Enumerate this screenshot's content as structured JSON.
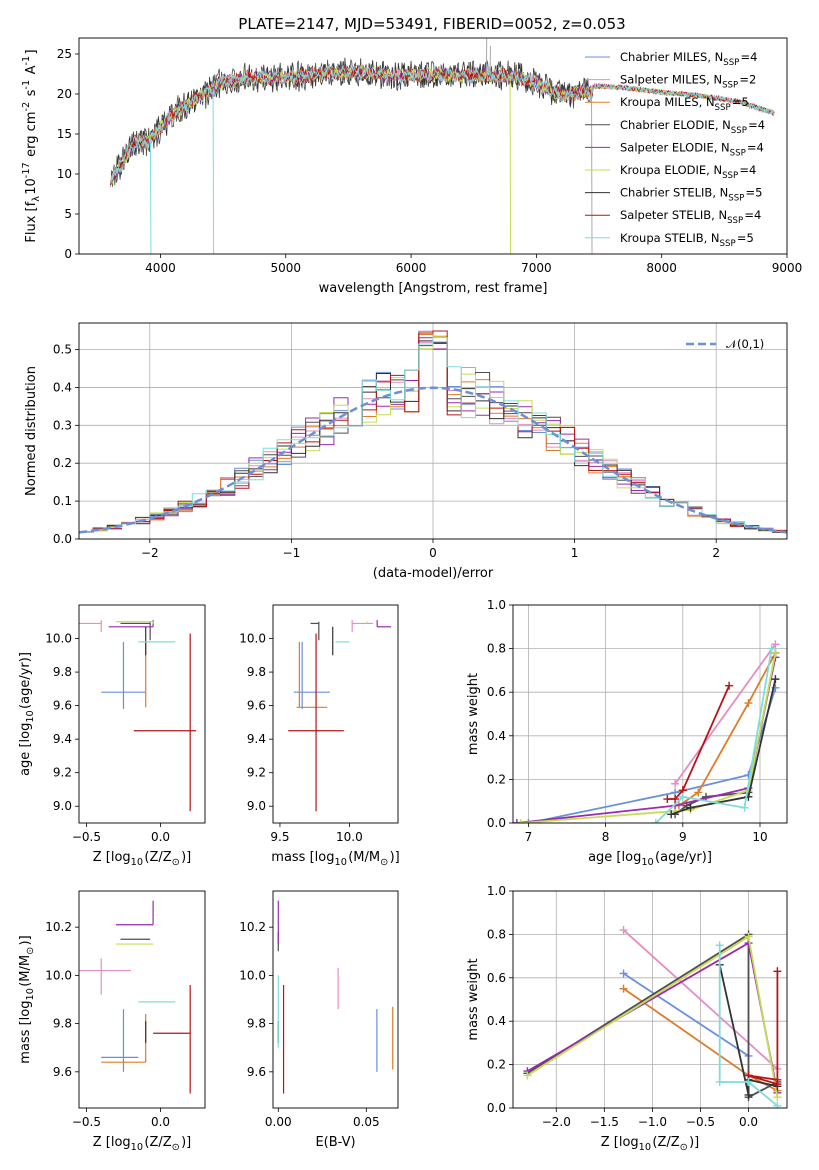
{
  "figure_title": "PLATE=2147, MJD=53491, FIBERID=0052, z=0.053",
  "models": [
    {
      "name": "Chabrier MILES, N$_{SSP}$=4",
      "color": "#6a8fdc"
    },
    {
      "name": "Salpeter MILES, N$_{SSP}$=2",
      "color": "#e48ec4"
    },
    {
      "name": "Kroupa MILES, N$_{SSP}$=5",
      "color": "#e07b28"
    },
    {
      "name": "Chabrier ELODIE, N$_{SSP}$=4",
      "color": "#4f4f4f"
    },
    {
      "name": "Salpeter ELODIE, N$_{SSP}$=4",
      "color": "#9a2ab0"
    },
    {
      "name": "Kroupa ELODIE, N$_{SSP}$=4",
      "color": "#c6dc54"
    },
    {
      "name": "Chabrier STELIB, N$_{SSP}$=5",
      "color": "#333333"
    },
    {
      "name": "Salpeter STELIB, N$_{SSP}$=4",
      "color": "#b81414"
    },
    {
      "name": "Kroupa STELIB, N$_{SSP}$=5",
      "color": "#7edcdc"
    }
  ],
  "chart_data": [
    {
      "id": "spectrum",
      "type": "line",
      "xlabel": "wavelength [Angstrom, rest frame]",
      "ylabel": "Flux [f$_\\lambda$10$^{-17}$ erg cm$^{-2}$ s$^{-1}$ A$^{-1}$]",
      "xlim": [
        3350,
        9000
      ],
      "ylim": [
        0,
        27
      ],
      "xticks": [
        4000,
        5000,
        6000,
        7000,
        8000,
        9000
      ],
      "yticks": [
        0,
        5,
        10,
        15,
        20,
        25
      ],
      "legend_loc": "upper right",
      "continuum": {
        "x": [
          3600,
          3700,
          3800,
          3900,
          4000,
          4100,
          4200,
          4300,
          4400,
          4500,
          4700,
          4900,
          5100,
          5300,
          5600,
          5900,
          6200,
          6500,
          6800,
          7000,
          7200,
          7400,
          7450
        ],
        "y": [
          9,
          11.5,
          14,
          14,
          15.8,
          17.5,
          18.5,
          19.5,
          20.5,
          21.5,
          22,
          22,
          22.2,
          22.6,
          22.7,
          22.3,
          22.4,
          22.3,
          22.3,
          21.4,
          19.8,
          20.3,
          20.2
        ]
      },
      "model_continuum": {
        "x": [
          7450,
          7700,
          8000,
          8300,
          8600,
          8900
        ],
        "y": [
          21,
          20.8,
          20.2,
          19.8,
          19.1,
          17.6
        ]
      },
      "spikes": [
        {
          "x": 3920,
          "y": 0
        },
        {
          "x": 4420,
          "y": 0
        },
        {
          "x": 6790,
          "y": 0
        },
        {
          "x": 6600,
          "y": 27
        },
        {
          "x": 6630,
          "y": 26
        },
        {
          "x": 7440,
          "y": 0
        }
      ]
    },
    {
      "id": "residuals",
      "type": "histogram",
      "xlabel": "(data-model)/error",
      "ylabel": "Normed distribution",
      "xlim": [
        -2.5,
        2.5
      ],
      "ylim": [
        0,
        0.57
      ],
      "xticks": [
        -2,
        -1,
        0,
        1,
        2
      ],
      "yticks": [
        0.0,
        0.1,
        0.2,
        0.3,
        0.4,
        0.5
      ],
      "grid": true,
      "reference_curve": {
        "label": "$\\mathcal{N}(0,1)$",
        "mean": 0,
        "sigma": 1,
        "color": "#6a8fdc"
      },
      "bin_width": 0.1,
      "legend_loc": "upper right"
    },
    {
      "id": "z_age",
      "type": "errorbar",
      "xlabel": "Z [log$_{10}$(Z/Z$_\\odot$)]",
      "ylabel": "age  [log$_{10}$(age/yr)]",
      "xlim": [
        -0.55,
        0.3
      ],
      "ylim": [
        8.9,
        10.2
      ],
      "xticks": [
        -0.5,
        0.0
      ],
      "yticks": [
        9.0,
        9.2,
        9.4,
        9.6,
        9.8,
        10.0
      ],
      "points": [
        {
          "x": -0.25,
          "xerr": [
            0.15,
            0.15
          ],
          "y": 9.68,
          "yerr": [
            0.1,
            0.3
          ]
        },
        {
          "x": -0.4,
          "xerr": [
            0.15,
            0.0
          ],
          "y": 10.09,
          "yerr": [
            0.05,
            0.02
          ]
        },
        {
          "x": -0.1,
          "xerr": [
            0.0,
            0.0
          ],
          "y": 9.59,
          "yerr": [
            0.0,
            0.39
          ]
        },
        {
          "x": -0.07,
          "xerr": [
            0.2,
            0.0
          ],
          "y": 10.09,
          "yerr": [
            0.1,
            0.01
          ]
        },
        {
          "x": -0.05,
          "xerr": [
            0.3,
            0.0
          ],
          "y": 10.07,
          "yerr": [
            0.0,
            0.04
          ]
        },
        {
          "x": -0.05,
          "xerr": [
            0.25,
            0.0
          ],
          "y": 10.1,
          "yerr": [
            0.01,
            0.0
          ]
        },
        {
          "x": -0.1,
          "xerr": [
            0.0,
            0.0
          ],
          "y": 10.0,
          "yerr": [
            0.1,
            0.07
          ]
        },
        {
          "x": 0.2,
          "xerr": [
            0.38,
            0.04
          ],
          "y": 9.45,
          "yerr": [
            0.48,
            0.58
          ]
        },
        {
          "x": -0.15,
          "xerr": [
            0.0,
            0.25
          ],
          "y": 9.98,
          "yerr": [
            0.0,
            0.0
          ]
        }
      ]
    },
    {
      "id": "mass_age",
      "type": "errorbar",
      "xlabel": "mass [log$_{10}$(M/M$_\\odot$)]",
      "ylabel": "",
      "xlim": [
        9.45,
        10.35
      ],
      "ylim": [
        8.9,
        10.2
      ],
      "xticks": [
        9.5,
        10.0
      ],
      "yticks": [
        9.0,
        9.2,
        9.4,
        9.6,
        9.8,
        10.0
      ],
      "points": [
        {
          "x": 9.66,
          "xerr": [
            0.06,
            0.2
          ],
          "y": 9.68,
          "yerr": [
            0.1,
            0.3
          ]
        },
        {
          "x": 10.02,
          "xerr": [
            0.0,
            0.15
          ],
          "y": 10.09,
          "yerr": [
            0.05,
            0.02
          ]
        },
        {
          "x": 9.64,
          "xerr": [
            0.02,
            0.2
          ],
          "y": 9.59,
          "yerr": [
            0.0,
            0.39
          ]
        },
        {
          "x": 9.78,
          "xerr": [
            0.06,
            0.0
          ],
          "y": 10.09,
          "yerr": [
            0.1,
            0.01
          ]
        },
        {
          "x": 10.2,
          "xerr": [
            0.0,
            0.1
          ],
          "y": 10.07,
          "yerr": [
            0.0,
            0.04
          ]
        },
        {
          "x": 10.13,
          "xerr": [
            0.0,
            0.0
          ],
          "y": 10.1,
          "yerr": [
            0.01,
            0.0
          ]
        },
        {
          "x": 9.88,
          "xerr": [
            0.0,
            0.0
          ],
          "y": 10.0,
          "yerr": [
            0.1,
            0.07
          ]
        },
        {
          "x": 9.76,
          "xerr": [
            0.2,
            0.2
          ],
          "y": 9.45,
          "yerr": [
            0.48,
            0.58
          ]
        },
        {
          "x": 9.9,
          "xerr": [
            0.0,
            0.1
          ],
          "y": 9.98,
          "yerr": [
            0.0,
            0.0
          ]
        }
      ]
    },
    {
      "id": "massweight_age",
      "type": "line",
      "xlabel": "age  [log$_{10}$(age/yr)]",
      "ylabel": "mass weight",
      "xlim": [
        6.8,
        10.35
      ],
      "ylim": [
        0,
        1.0
      ],
      "xticks": [
        7,
        8,
        9,
        10
      ],
      "yticks": [
        0.0,
        0.2,
        0.4,
        0.6,
        0.8,
        1.0
      ],
      "grid": true,
      "series": [
        {
          "x": [
            7.0,
            8.9,
            9.85,
            10.2
          ],
          "y": [
            0.0,
            0.14,
            0.22,
            0.62
          ]
        },
        {
          "x": [
            8.9,
            10.2
          ],
          "y": [
            0.18,
            0.82
          ]
        },
        {
          "x": [
            8.95,
            9.2,
            9.85,
            10.2
          ],
          "y": [
            0.08,
            0.14,
            0.55,
            0.78
          ]
        },
        {
          "x": [
            8.9,
            9.05,
            9.3,
            9.85,
            10.2
          ],
          "y": [
            0.04,
            0.08,
            0.12,
            0.14,
            0.78
          ]
        },
        {
          "x": [
            6.85,
            8.9,
            9.85,
            10.2
          ],
          "y": [
            0.0,
            0.08,
            0.16,
            0.76
          ]
        },
        {
          "x": [
            6.9,
            9.1,
            9.85,
            10.2
          ],
          "y": [
            0.0,
            0.06,
            0.15,
            0.78
          ]
        },
        {
          "x": [
            8.85,
            9.1,
            9.85,
            10.2
          ],
          "y": [
            0.04,
            0.07,
            0.12,
            0.66
          ]
        },
        {
          "x": [
            8.8,
            8.9,
            9.0,
            9.6
          ],
          "y": [
            0.11,
            0.11,
            0.15,
            0.63
          ]
        },
        {
          "x": [
            8.65,
            9.0,
            9.8,
            10.15
          ],
          "y": [
            0.0,
            0.12,
            0.07,
            0.8
          ]
        }
      ]
    },
    {
      "id": "z_mass",
      "type": "errorbar",
      "xlabel": "Z [log$_{10}$(Z/Z$_\\odot$)]",
      "ylabel": "mass [log$_{10}$(M/M$_\\odot$)]",
      "xlim": [
        -0.55,
        0.3
      ],
      "ylim": [
        9.45,
        10.35
      ],
      "xticks": [
        -0.5,
        0.0
      ],
      "yticks": [
        9.6,
        9.8,
        10.0,
        10.2
      ],
      "points": [
        {
          "x": -0.25,
          "xerr": [
            0.15,
            0.1
          ],
          "y": 9.66,
          "yerr": [
            0.06,
            0.2
          ]
        },
        {
          "x": -0.4,
          "xerr": [
            0.15,
            0.2
          ],
          "y": 10.02,
          "yerr": [
            0.1,
            0.05
          ]
        },
        {
          "x": -0.1,
          "xerr": [
            0.3,
            0.0
          ],
          "y": 9.64,
          "yerr": [
            0.0,
            0.2
          ]
        },
        {
          "x": -0.07,
          "xerr": [
            0.2,
            0.0
          ],
          "y": 10.15,
          "yerr": [
            0.0,
            0.0
          ]
        },
        {
          "x": -0.05,
          "xerr": [
            0.25,
            0.0
          ],
          "y": 10.21,
          "yerr": [
            0.0,
            0.1
          ]
        },
        {
          "x": -0.05,
          "xerr": [
            0.25,
            0.0
          ],
          "y": 10.13,
          "yerr": [
            0.0,
            0.0
          ]
        },
        {
          "x": -0.1,
          "xerr": [
            0.0,
            0.0
          ],
          "y": 9.78,
          "yerr": [
            0.06,
            0.03
          ]
        },
        {
          "x": 0.2,
          "xerr": [
            0.25,
            0.0
          ],
          "y": 9.76,
          "yerr": [
            0.25,
            0.2
          ]
        },
        {
          "x": -0.15,
          "xerr": [
            0.0,
            0.25
          ],
          "y": 9.89,
          "yerr": [
            0.0,
            0.0
          ]
        }
      ]
    },
    {
      "id": "ebv_mass",
      "type": "errorbar",
      "xlabel": "E(B-V)",
      "ylabel": "",
      "xlim": [
        -0.003,
        0.068
      ],
      "ylim": [
        9.45,
        10.35
      ],
      "xticks": [
        0.0,
        0.05
      ],
      "yticks": [
        9.6,
        9.8,
        10.0,
        10.2
      ],
      "points": [
        {
          "x": 0.056,
          "xerr": [
            0,
            0
          ],
          "y": 9.73,
          "yerr": [
            0.13,
            0.13
          ]
        },
        {
          "x": 0.034,
          "xerr": [
            0,
            0
          ],
          "y": 9.99,
          "yerr": [
            0.13,
            0.04
          ]
        },
        {
          "x": 0.065,
          "xerr": [
            0,
            0
          ],
          "y": 9.74,
          "yerr": [
            0.13,
            0.13
          ]
        },
        {
          "x": 0.0,
          "xerr": [
            0,
            0
          ],
          "y": 10.15,
          "yerr": [
            0.05,
            0.03
          ]
        },
        {
          "x": 0.0,
          "xerr": [
            0,
            0
          ],
          "y": 10.21,
          "yerr": [
            0.08,
            0.1
          ]
        },
        {
          "x": 0.0,
          "xerr": [
            0,
            0
          ],
          "y": 10.13,
          "yerr": [
            0.0,
            0.0
          ]
        },
        {
          "x": 0.0,
          "xerr": [
            0,
            0
          ],
          "y": 9.78,
          "yerr": [
            0.06,
            0.03
          ]
        },
        {
          "x": 0.003,
          "xerr": [
            0,
            0
          ],
          "y": 9.76,
          "yerr": [
            0.25,
            0.2
          ]
        },
        {
          "x": 0.0,
          "xerr": [
            0,
            0
          ],
          "y": 9.9,
          "yerr": [
            0.2,
            0.1
          ]
        }
      ]
    },
    {
      "id": "massweight_z",
      "type": "line",
      "xlabel": "Z [log$_{10}$(Z/Z$_\\odot$)]",
      "ylabel": "mass weight",
      "xlim": [
        -2.45,
        0.4
      ],
      "ylim": [
        0,
        1.0
      ],
      "xticks": [
        -2.0,
        -1.5,
        -1.0,
        -0.5,
        0.0
      ],
      "yticks": [
        0.0,
        0.2,
        0.4,
        0.6,
        0.8,
        1.0
      ],
      "grid": true,
      "series": [
        {
          "x": [
            -1.3,
            0.0
          ],
          "y": [
            0.62,
            0.24
          ]
        },
        {
          "x": [
            -1.3,
            0.3
          ],
          "y": [
            0.82,
            0.18
          ]
        },
        {
          "x": [
            -1.3,
            0.0,
            0.3
          ],
          "y": [
            0.55,
            0.15,
            0.08
          ]
        },
        {
          "x": [
            -2.3,
            0.0,
            0.0,
            0.3
          ],
          "y": [
            0.16,
            0.8,
            0.05,
            0.12
          ]
        },
        {
          "x": [
            -2.3,
            0.0,
            0.3
          ],
          "y": [
            0.17,
            0.76,
            0.07
          ]
        },
        {
          "x": [
            -2.3,
            0.0,
            0.3
          ],
          "y": [
            0.15,
            0.79,
            0.05
          ]
        },
        {
          "x": [
            -0.3,
            0.0,
            0.0,
            0.3
          ],
          "y": [
            0.66,
            0.06,
            0.13,
            0.1
          ]
        },
        {
          "x": [
            0.3,
            0.3,
            0.0,
            0.3
          ],
          "y": [
            0.63,
            0.11,
            0.15,
            0.13
          ]
        },
        {
          "x": [
            -0.3,
            -0.3,
            0.0,
            0.3
          ],
          "y": [
            0.75,
            0.12,
            0.12,
            0.01
          ]
        }
      ]
    }
  ]
}
